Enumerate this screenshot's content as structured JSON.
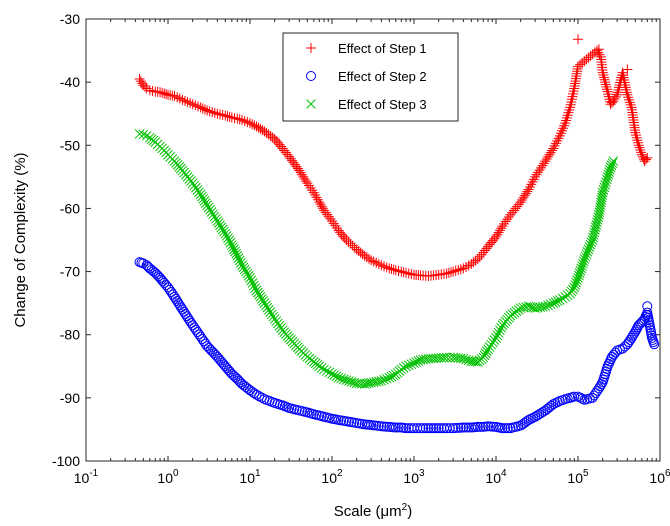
{
  "chart_data": {
    "type": "scatter",
    "title": "",
    "xlabel": "Scale (μm",
    "xlabel_sup": "2",
    "xlabel_close": ")",
    "ylabel": "Change of Complexity (%)",
    "xscale": "log",
    "xlim": [
      0.1,
      1000000
    ],
    "ylim": [
      -100,
      -30
    ],
    "xticks": [
      {
        "base": "10",
        "exp": "-1"
      },
      {
        "base": "10",
        "exp": "0"
      },
      {
        "base": "10",
        "exp": "1"
      },
      {
        "base": "10",
        "exp": "2"
      },
      {
        "base": "10",
        "exp": "3"
      },
      {
        "base": "10",
        "exp": "4"
      },
      {
        "base": "10",
        "exp": "5"
      },
      {
        "base": "10",
        "exp": "6"
      }
    ],
    "yticks": [
      "-30",
      "-40",
      "-50",
      "-60",
      "-70",
      "-80",
      "-90",
      "-100"
    ],
    "grid": false,
    "legend_position": "top-center",
    "series": [
      {
        "name": "Effect of Step 1",
        "marker": "plus",
        "color": "#ff0000",
        "x": [
          0.45,
          0.5,
          0.55,
          0.6,
          0.7,
          0.8,
          0.9,
          1,
          1.2,
          1.5,
          2,
          2.5,
          3,
          4,
          5,
          6,
          7,
          8,
          10,
          12,
          15,
          20,
          25,
          30,
          40,
          50,
          60,
          70,
          80,
          100,
          120,
          150,
          200,
          250,
          300,
          400,
          500,
          600,
          700,
          800,
          1000,
          1200,
          1500,
          2000,
          2500,
          3000,
          4000,
          5000,
          6000,
          7000,
          8000,
          10000,
          12000,
          15000,
          20000,
          25000,
          30000,
          40000,
          50000,
          60000,
          70000,
          80000,
          90000,
          100000,
          170000,
          190000,
          200000,
          230000,
          250000,
          270000,
          300000,
          350000,
          400000,
          450000,
          500000,
          550000,
          600000,
          650000,
          700000
        ],
        "y": [
          -39.5,
          -40.5,
          -41,
          -41.3,
          -41.5,
          -41.6,
          -41.8,
          -42,
          -42.2,
          -42.8,
          -43.5,
          -44,
          -44.5,
          -45,
          -45.3,
          -45.6,
          -45.8,
          -46,
          -46.5,
          -47,
          -47.8,
          -49,
          -50.5,
          -51.8,
          -54,
          -56,
          -57.5,
          -59,
          -60.3,
          -62,
          -63.5,
          -65,
          -66.5,
          -67.5,
          -68.2,
          -69,
          -69.5,
          -69.8,
          -70,
          -70.2,
          -70.5,
          -70.6,
          -70.7,
          -70.5,
          -70.3,
          -70,
          -69.5,
          -68.8,
          -68,
          -67,
          -66,
          -64.5,
          -62.8,
          -61,
          -59,
          -57,
          -55,
          -52.5,
          -50.5,
          -48.5,
          -46.5,
          -44,
          -41,
          -37.5,
          -35,
          -36,
          -38.5,
          -41.5,
          -43.5,
          -43,
          -42,
          -38.5,
          -42,
          -44,
          -48,
          -50,
          -51.5,
          -52.5,
          -52
        ],
        "outliers": [
          [
            100000,
            -33.2
          ],
          [
            180000,
            -34.8
          ],
          [
            400000,
            -38
          ]
        ]
      },
      {
        "name": "Effect of Step 2",
        "marker": "circle",
        "color": "#0000ff",
        "x": [
          0.45,
          0.5,
          0.55,
          0.6,
          0.7,
          0.8,
          0.9,
          1,
          1.2,
          1.5,
          2,
          2.5,
          3,
          4,
          5,
          6,
          7,
          8,
          10,
          12,
          15,
          20,
          25,
          30,
          40,
          50,
          60,
          70,
          80,
          100,
          120,
          150,
          200,
          250,
          300,
          400,
          500,
          600,
          700,
          800,
          1000,
          1200,
          1500,
          2000,
          2500,
          3000,
          4000,
          5000,
          6000,
          7000,
          8000,
          10000,
          12000,
          15000,
          20000,
          25000,
          30000,
          40000,
          50000,
          60000,
          70000,
          80000,
          90000,
          100000,
          120000,
          150000,
          180000,
          200000,
          230000,
          260000,
          300000,
          350000,
          400000,
          450000,
          500000,
          550000,
          600000,
          650000,
          700000,
          800000,
          850000
        ],
        "y": [
          -68.5,
          -68.7,
          -69,
          -69.5,
          -70.2,
          -71,
          -71.8,
          -72.5,
          -74,
          -76,
          -78.5,
          -80.3,
          -81.8,
          -83.5,
          -85,
          -86.2,
          -87,
          -87.8,
          -88.8,
          -89.5,
          -90.2,
          -90.8,
          -91.2,
          -91.6,
          -92,
          -92.3,
          -92.6,
          -92.8,
          -93,
          -93.3,
          -93.5,
          -93.7,
          -94,
          -94.2,
          -94.3,
          -94.5,
          -94.6,
          -94.7,
          -94.7,
          -94.8,
          -94.8,
          -94.8,
          -94.8,
          -94.8,
          -94.8,
          -94.8,
          -94.7,
          -94.7,
          -94.6,
          -94.6,
          -94.5,
          -94.6,
          -94.8,
          -94.8,
          -94.4,
          -93.5,
          -93,
          -92,
          -91,
          -90.5,
          -90.2,
          -90,
          -89.8,
          -89.8,
          -90.3,
          -90,
          -88.5,
          -87.5,
          -85,
          -83.5,
          -82.5,
          -82.2,
          -81.5,
          -80.5,
          -79.5,
          -78.5,
          -78,
          -77.5,
          -76.5,
          -80.5,
          -81.5
        ],
        "outliers": [
          [
            700000,
            -75.5
          ]
        ]
      },
      {
        "name": "Effect of Step 3",
        "marker": "x",
        "color": "#00c000",
        "x": [
          0.45,
          0.5,
          0.55,
          0.6,
          0.7,
          0.8,
          0.9,
          1,
          1.2,
          1.5,
          2,
          2.5,
          3,
          4,
          5,
          6,
          7,
          8,
          10,
          12,
          15,
          20,
          25,
          30,
          40,
          50,
          60,
          70,
          80,
          100,
          120,
          150,
          200,
          250,
          300,
          400,
          500,
          600,
          700,
          800,
          1000,
          1200,
          1500,
          2000,
          2500,
          3000,
          4000,
          5000,
          6000,
          7000,
          8000,
          10000,
          12000,
          15000,
          20000,
          25000,
          30000,
          40000,
          50000,
          60000,
          70000,
          80000,
          90000,
          100000,
          120000,
          150000,
          180000,
          200000,
          230000,
          250000,
          270000
        ],
        "y": [
          -48.2,
          -48.3,
          -48.5,
          -48.8,
          -49.5,
          -50.2,
          -50.8,
          -51.5,
          -52.5,
          -54,
          -56,
          -57.8,
          -59.5,
          -62,
          -64,
          -65.8,
          -67.5,
          -69,
          -71,
          -73,
          -75,
          -77.5,
          -79.3,
          -80.5,
          -82.3,
          -83.5,
          -84.3,
          -85,
          -85.5,
          -86.2,
          -86.8,
          -87.2,
          -87.7,
          -87.8,
          -87.6,
          -87.3,
          -86.8,
          -86.3,
          -85.5,
          -85,
          -84.5,
          -84,
          -83.8,
          -83.7,
          -83.6,
          -83.6,
          -83.8,
          -84.2,
          -84.3,
          -83.6,
          -82.3,
          -80.5,
          -78.5,
          -77,
          -75.8,
          -75.5,
          -75.8,
          -75.5,
          -75,
          -74.5,
          -74,
          -73.5,
          -72.5,
          -71,
          -68,
          -65,
          -61,
          -57.5,
          -55,
          -53.5,
          -52.5
        ]
      }
    ]
  }
}
